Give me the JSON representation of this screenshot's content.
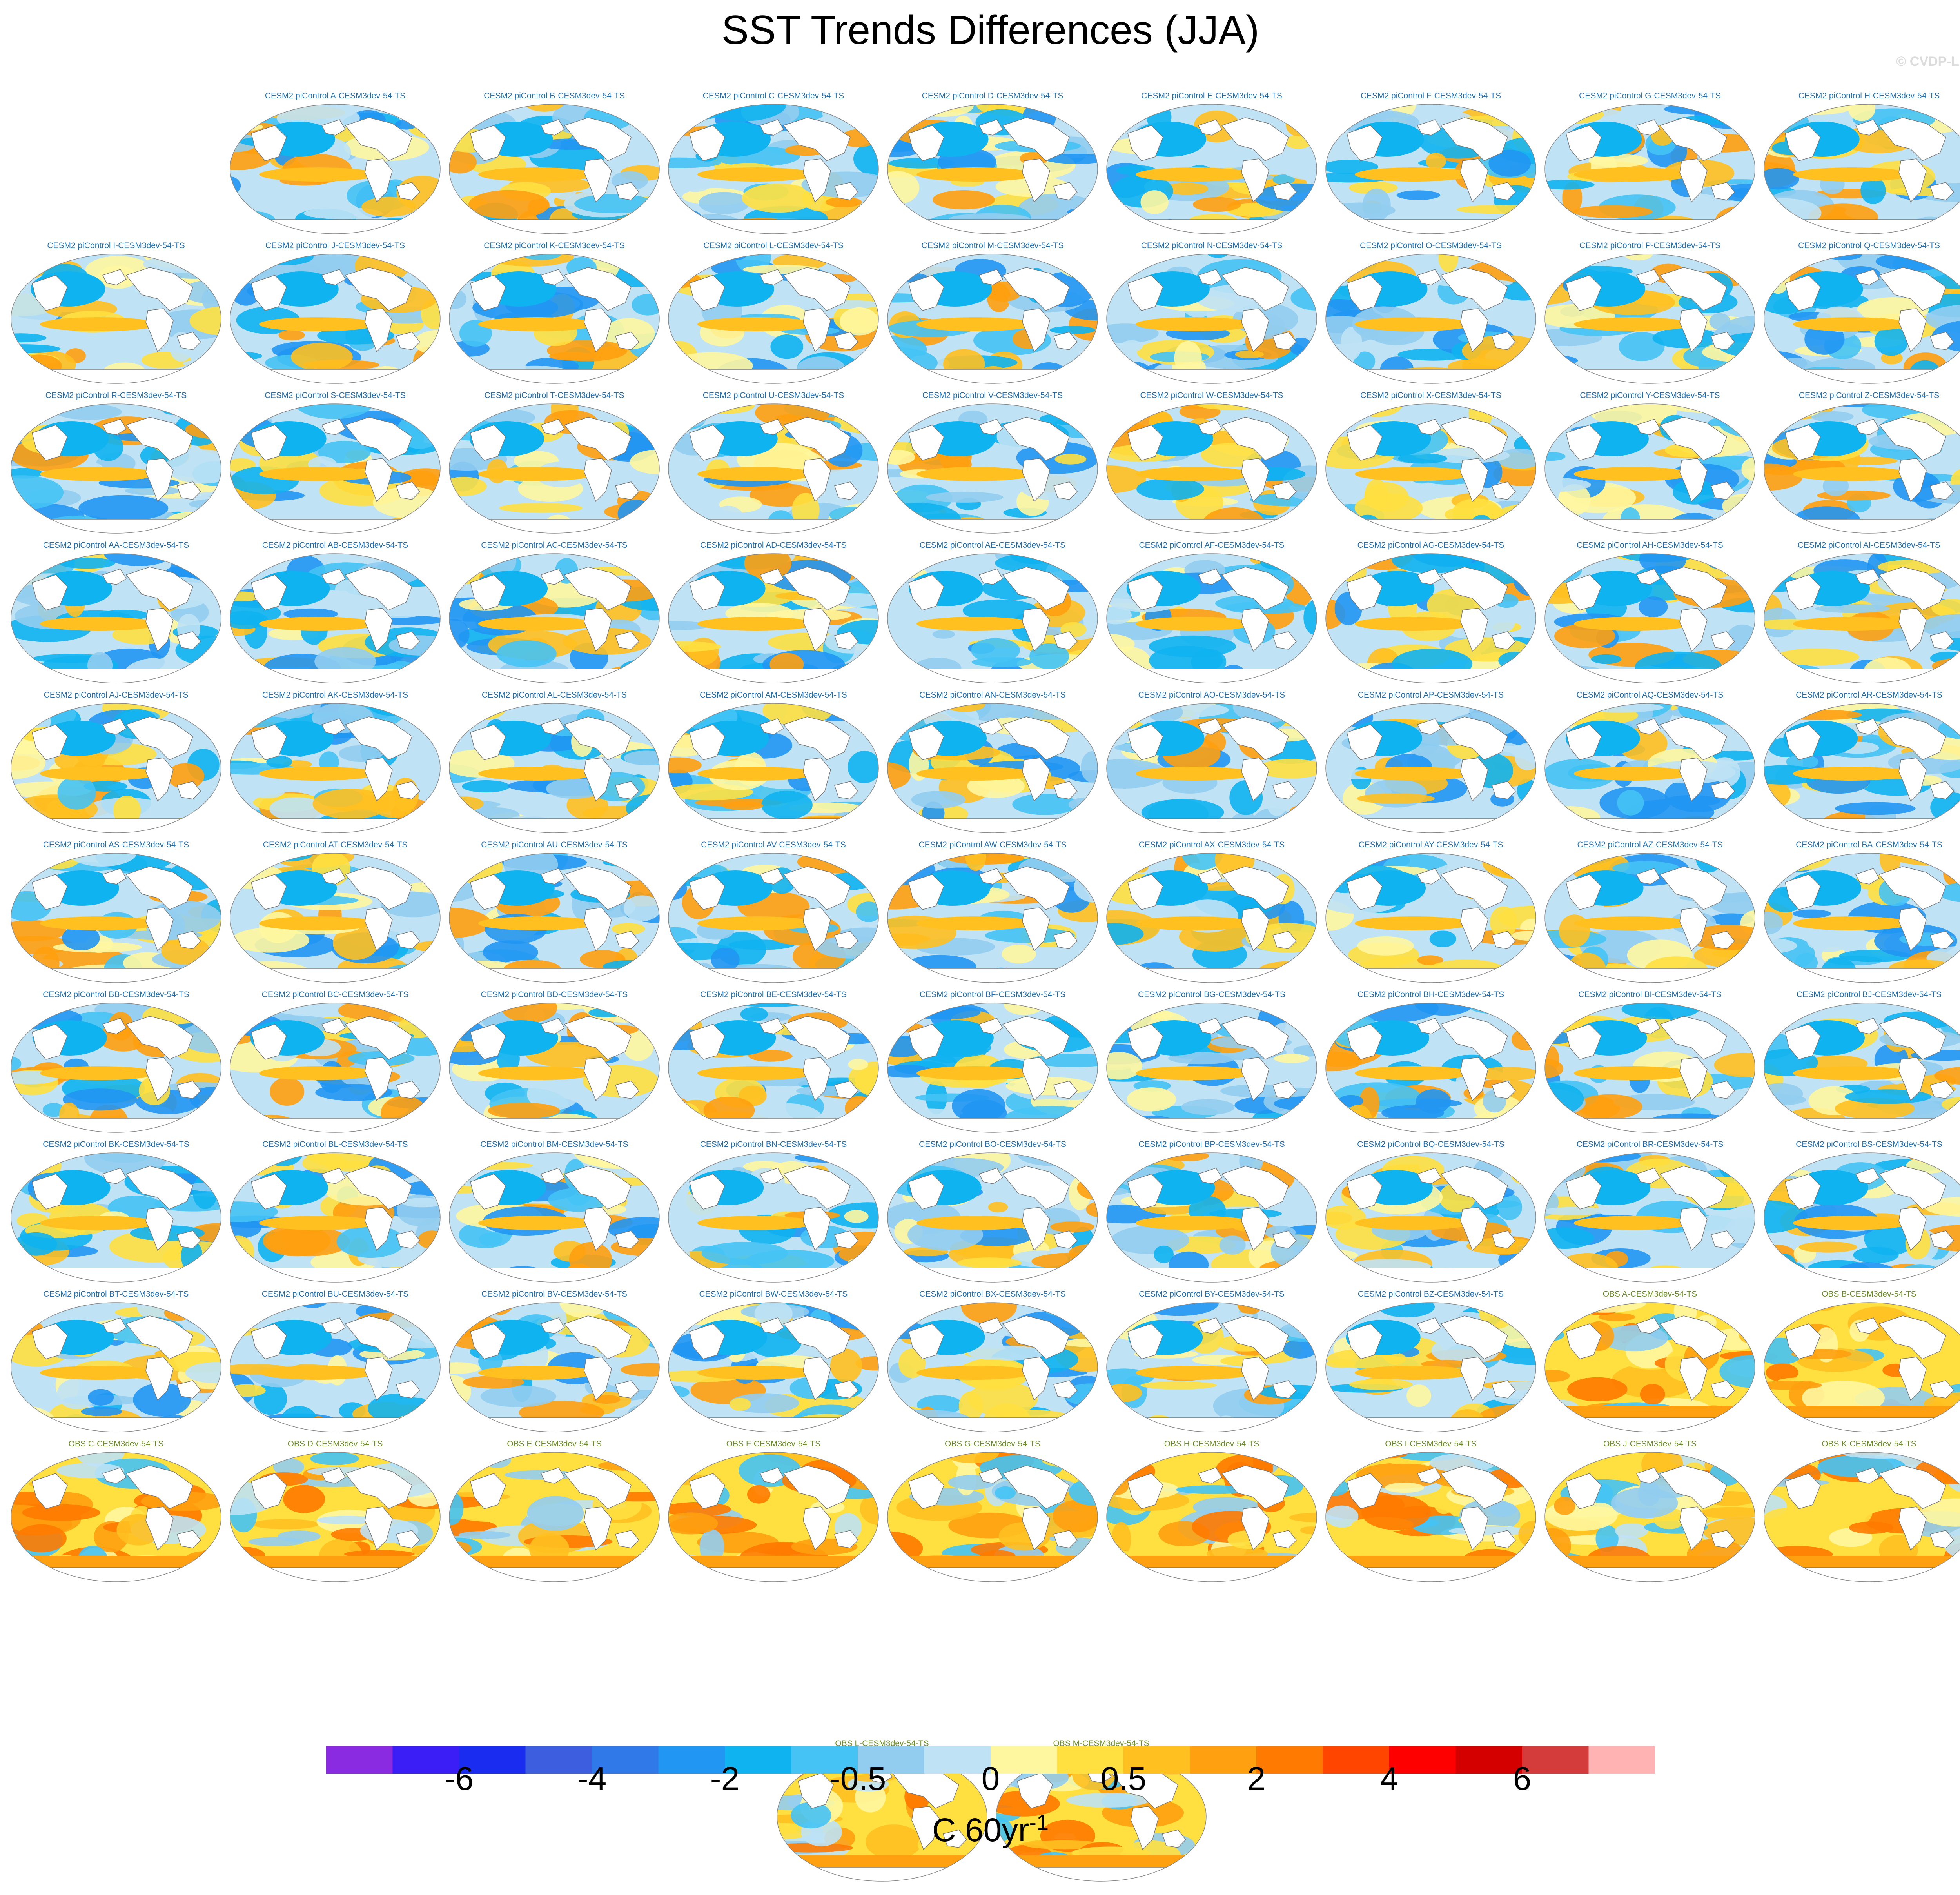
{
  "title": "SST Trends Differences (JJA)",
  "watermark": "© CVDP-LE",
  "colors": {
    "model_title": "#1f6fb0",
    "obs_title": "#6b8e23",
    "land": "#ffffff",
    "coast": "#777777"
  },
  "panels": [
    {
      "label": "CESM2 piControl A-CESM3dev-54-TS",
      "kind": "model"
    },
    {
      "label": "CESM2 piControl B-CESM3dev-54-TS",
      "kind": "model"
    },
    {
      "label": "CESM2 piControl C-CESM3dev-54-TS",
      "kind": "model"
    },
    {
      "label": "CESM2 piControl D-CESM3dev-54-TS",
      "kind": "model"
    },
    {
      "label": "CESM2 piControl E-CESM3dev-54-TS",
      "kind": "model"
    },
    {
      "label": "CESM2 piControl F-CESM3dev-54-TS",
      "kind": "model"
    },
    {
      "label": "CESM2 piControl G-CESM3dev-54-TS",
      "kind": "model"
    },
    {
      "label": "CESM2 piControl H-CESM3dev-54-TS",
      "kind": "model"
    },
    {
      "label": "CESM2 piControl I-CESM3dev-54-TS",
      "kind": "model"
    },
    {
      "label": "CESM2 piControl J-CESM3dev-54-TS",
      "kind": "model"
    },
    {
      "label": "CESM2 piControl K-CESM3dev-54-TS",
      "kind": "model"
    },
    {
      "label": "CESM2 piControl L-CESM3dev-54-TS",
      "kind": "model"
    },
    {
      "label": "CESM2 piControl M-CESM3dev-54-TS",
      "kind": "model"
    },
    {
      "label": "CESM2 piControl N-CESM3dev-54-TS",
      "kind": "model"
    },
    {
      "label": "CESM2 piControl O-CESM3dev-54-TS",
      "kind": "model"
    },
    {
      "label": "CESM2 piControl P-CESM3dev-54-TS",
      "kind": "model"
    },
    {
      "label": "CESM2 piControl Q-CESM3dev-54-TS",
      "kind": "model"
    },
    {
      "label": "CESM2 piControl R-CESM3dev-54-TS",
      "kind": "model"
    },
    {
      "label": "CESM2 piControl S-CESM3dev-54-TS",
      "kind": "model"
    },
    {
      "label": "CESM2 piControl T-CESM3dev-54-TS",
      "kind": "model"
    },
    {
      "label": "CESM2 piControl U-CESM3dev-54-TS",
      "kind": "model"
    },
    {
      "label": "CESM2 piControl V-CESM3dev-54-TS",
      "kind": "model"
    },
    {
      "label": "CESM2 piControl W-CESM3dev-54-TS",
      "kind": "model"
    },
    {
      "label": "CESM2 piControl X-CESM3dev-54-TS",
      "kind": "model"
    },
    {
      "label": "CESM2 piControl Y-CESM3dev-54-TS",
      "kind": "model"
    },
    {
      "label": "CESM2 piControl Z-CESM3dev-54-TS",
      "kind": "model"
    },
    {
      "label": "CESM2 piControl AA-CESM3dev-54-TS",
      "kind": "model"
    },
    {
      "label": "CESM2 piControl AB-CESM3dev-54-TS",
      "kind": "model"
    },
    {
      "label": "CESM2 piControl AC-CESM3dev-54-TS",
      "kind": "model"
    },
    {
      "label": "CESM2 piControl AD-CESM3dev-54-TS",
      "kind": "model"
    },
    {
      "label": "CESM2 piControl AE-CESM3dev-54-TS",
      "kind": "model"
    },
    {
      "label": "CESM2 piControl AF-CESM3dev-54-TS",
      "kind": "model"
    },
    {
      "label": "CESM2 piControl AG-CESM3dev-54-TS",
      "kind": "model"
    },
    {
      "label": "CESM2 piControl AH-CESM3dev-54-TS",
      "kind": "model"
    },
    {
      "label": "CESM2 piControl AI-CESM3dev-54-TS",
      "kind": "model"
    },
    {
      "label": "CESM2 piControl AJ-CESM3dev-54-TS",
      "kind": "model"
    },
    {
      "label": "CESM2 piControl AK-CESM3dev-54-TS",
      "kind": "model"
    },
    {
      "label": "CESM2 piControl AL-CESM3dev-54-TS",
      "kind": "model"
    },
    {
      "label": "CESM2 piControl AM-CESM3dev-54-TS",
      "kind": "model"
    },
    {
      "label": "CESM2 piControl AN-CESM3dev-54-TS",
      "kind": "model"
    },
    {
      "label": "CESM2 piControl AO-CESM3dev-54-TS",
      "kind": "model"
    },
    {
      "label": "CESM2 piControl AP-CESM3dev-54-TS",
      "kind": "model"
    },
    {
      "label": "CESM2 piControl AQ-CESM3dev-54-TS",
      "kind": "model"
    },
    {
      "label": "CESM2 piControl AR-CESM3dev-54-TS",
      "kind": "model"
    },
    {
      "label": "CESM2 piControl AS-CESM3dev-54-TS",
      "kind": "model"
    },
    {
      "label": "CESM2 piControl AT-CESM3dev-54-TS",
      "kind": "model"
    },
    {
      "label": "CESM2 piControl AU-CESM3dev-54-TS",
      "kind": "model"
    },
    {
      "label": "CESM2 piControl AV-CESM3dev-54-TS",
      "kind": "model"
    },
    {
      "label": "CESM2 piControl AW-CESM3dev-54-TS",
      "kind": "model"
    },
    {
      "label": "CESM2 piControl AX-CESM3dev-54-TS",
      "kind": "model"
    },
    {
      "label": "CESM2 piControl AY-CESM3dev-54-TS",
      "kind": "model"
    },
    {
      "label": "CESM2 piControl AZ-CESM3dev-54-TS",
      "kind": "model"
    },
    {
      "label": "CESM2 piControl BA-CESM3dev-54-TS",
      "kind": "model"
    },
    {
      "label": "CESM2 piControl BB-CESM3dev-54-TS",
      "kind": "model"
    },
    {
      "label": "CESM2 piControl BC-CESM3dev-54-TS",
      "kind": "model"
    },
    {
      "label": "CESM2 piControl BD-CESM3dev-54-TS",
      "kind": "model"
    },
    {
      "label": "CESM2 piControl BE-CESM3dev-54-TS",
      "kind": "model"
    },
    {
      "label": "CESM2 piControl BF-CESM3dev-54-TS",
      "kind": "model"
    },
    {
      "label": "CESM2 piControl BG-CESM3dev-54-TS",
      "kind": "model"
    },
    {
      "label": "CESM2 piControl BH-CESM3dev-54-TS",
      "kind": "model"
    },
    {
      "label": "CESM2 piControl BI-CESM3dev-54-TS",
      "kind": "model"
    },
    {
      "label": "CESM2 piControl BJ-CESM3dev-54-TS",
      "kind": "model"
    },
    {
      "label": "CESM2 piControl BK-CESM3dev-54-TS",
      "kind": "model"
    },
    {
      "label": "CESM2 piControl BL-CESM3dev-54-TS",
      "kind": "model"
    },
    {
      "label": "CESM2 piControl BM-CESM3dev-54-TS",
      "kind": "model"
    },
    {
      "label": "CESM2 piControl BN-CESM3dev-54-TS",
      "kind": "model"
    },
    {
      "label": "CESM2 piControl BO-CESM3dev-54-TS",
      "kind": "model"
    },
    {
      "label": "CESM2 piControl BP-CESM3dev-54-TS",
      "kind": "model"
    },
    {
      "label": "CESM2 piControl BQ-CESM3dev-54-TS",
      "kind": "model"
    },
    {
      "label": "CESM2 piControl BR-CESM3dev-54-TS",
      "kind": "model"
    },
    {
      "label": "CESM2 piControl BS-CESM3dev-54-TS",
      "kind": "model"
    },
    {
      "label": "CESM2 piControl BT-CESM3dev-54-TS",
      "kind": "model"
    },
    {
      "label": "CESM2 piControl BU-CESM3dev-54-TS",
      "kind": "model"
    },
    {
      "label": "CESM2 piControl BV-CESM3dev-54-TS",
      "kind": "model"
    },
    {
      "label": "CESM2 piControl BW-CESM3dev-54-TS",
      "kind": "model"
    },
    {
      "label": "CESM2 piControl BX-CESM3dev-54-TS",
      "kind": "model"
    },
    {
      "label": "CESM2 piControl BY-CESM3dev-54-TS",
      "kind": "model"
    },
    {
      "label": "CESM2 piControl BZ-CESM3dev-54-TS",
      "kind": "model"
    },
    {
      "label": "OBS A-CESM3dev-54-TS",
      "kind": "obs"
    },
    {
      "label": "OBS B-CESM3dev-54-TS",
      "kind": "obs"
    },
    {
      "label": "OBS C-CESM3dev-54-TS",
      "kind": "obs"
    },
    {
      "label": "OBS D-CESM3dev-54-TS",
      "kind": "obs"
    },
    {
      "label": "OBS E-CESM3dev-54-TS",
      "kind": "obs"
    },
    {
      "label": "OBS F-CESM3dev-54-TS",
      "kind": "obs"
    },
    {
      "label": "OBS G-CESM3dev-54-TS",
      "kind": "obs"
    },
    {
      "label": "OBS H-CESM3dev-54-TS",
      "kind": "obs"
    },
    {
      "label": "OBS I-CESM3dev-54-TS",
      "kind": "obs"
    },
    {
      "label": "OBS J-CESM3dev-54-TS",
      "kind": "obs"
    },
    {
      "label": "OBS K-CESM3dev-54-TS",
      "kind": "obs"
    },
    {
      "label": "OBS L-CESM3dev-54-TS",
      "kind": "obs"
    },
    {
      "label": "OBS M-CESM3dev-54-TS",
      "kind": "obs"
    }
  ],
  "colorbar": {
    "colors": [
      "#8a2be2",
      "#3b1ef5",
      "#1a2cf0",
      "#3e5ee0",
      "#2f7ae8",
      "#2196f3",
      "#0fb3f0",
      "#45c3f5",
      "#92cdef",
      "#bfe2f5",
      "#fff7a0",
      "#ffe040",
      "#ffc020",
      "#ffa010",
      "#ff7a00",
      "#ff4500",
      "#ff0000",
      "#d40000",
      "#d43b3b",
      "#ffb3b3"
    ],
    "tick_labels": [
      "-6",
      "-4",
      "-2",
      "-0.5",
      "0",
      "0.5",
      "2",
      "4",
      "6"
    ],
    "tick_boundary_index": [
      2,
      4,
      6,
      8,
      10,
      12,
      14,
      16,
      18
    ],
    "unit": "C 60yr",
    "unit_sup": "-1"
  }
}
